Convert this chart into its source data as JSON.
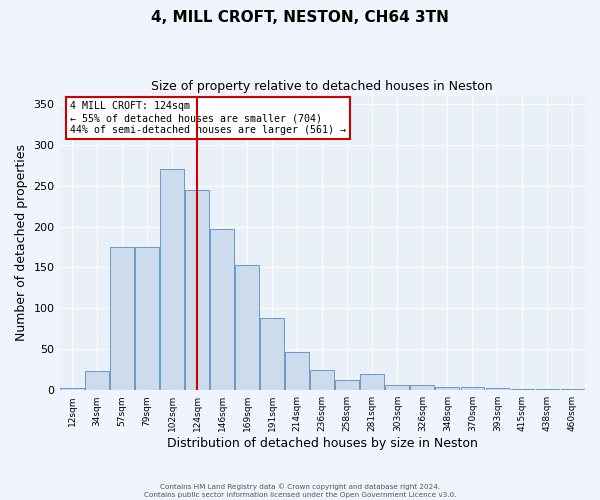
{
  "title": "4, MILL CROFT, NESTON, CH64 3TN",
  "subtitle": "Size of property relative to detached houses in Neston",
  "xlabel": "Distribution of detached houses by size in Neston",
  "ylabel": "Number of detached properties",
  "bar_color": "#ccdcec",
  "bar_edge_color": "#6699cc",
  "bg_color": "#eaf0f8",
  "grid_color": "#ffffff",
  "vline_x": 5,
  "vline_color": "#cc0000",
  "annotation_text": "4 MILL CROFT: 124sqm\n← 55% of detached houses are smaller (704)\n44% of semi-detached houses are larger (561) →",
  "annotation_box_color": "#ffffff",
  "annotation_box_edge": "#cc0000",
  "bar_heights": [
    3,
    23,
    175,
    175,
    270,
    245,
    197,
    153,
    88,
    47,
    25,
    13,
    20,
    6,
    6,
    4,
    4,
    3,
    2,
    2,
    2
  ],
  "footer_line1": "Contains HM Land Registry data © Crown copyright and database right 2024.",
  "footer_line2": "Contains public sector information licensed under the Open Government Licence v3.0.",
  "ylim": [
    0,
    360
  ],
  "yticks": [
    0,
    50,
    100,
    150,
    200,
    250,
    300,
    350
  ],
  "xtick_labels": [
    "12sqm",
    "34sqm",
    "57sqm",
    "79sqm",
    "102sqm",
    "124sqm",
    "146sqm",
    "169sqm",
    "191sqm",
    "214sqm",
    "236sqm",
    "258sqm",
    "281sqm",
    "303sqm",
    "326sqm",
    "348sqm",
    "370sqm",
    "393sqm",
    "415sqm",
    "438sqm",
    "460sqm"
  ],
  "title_fontsize": 11,
  "subtitle_fontsize": 9,
  "ylabel_fontsize": 9,
  "xlabel_fontsize": 9
}
